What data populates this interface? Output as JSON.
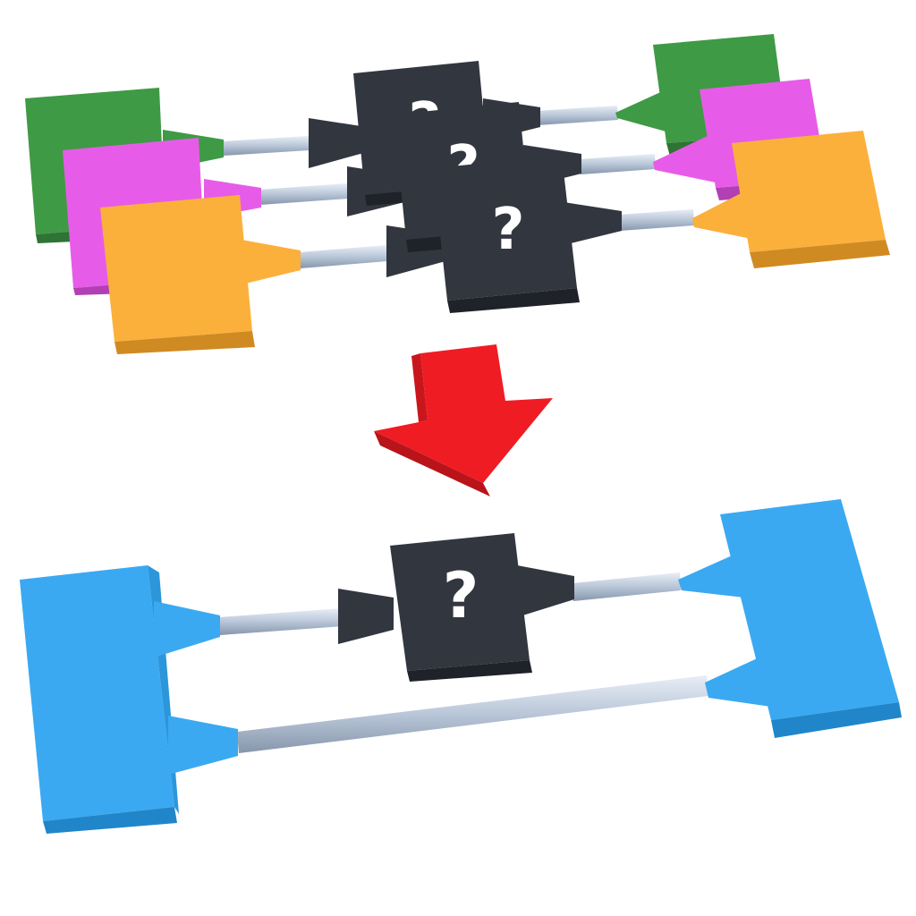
{
  "figure": {
    "top_group": {
      "rows": [
        {
          "color_name": "green",
          "color": "#3f9a45",
          "color_dark": "#2e7434",
          "unknown_label": "?"
        },
        {
          "color_name": "magenta",
          "color": "#e65ce8",
          "color_dark": "#b23fb4",
          "unknown_label": "?"
        },
        {
          "color_name": "orange",
          "color": "#fbb03c",
          "color_dark": "#d08a22",
          "unknown_label": "?"
        }
      ]
    },
    "transition_arrow": {
      "icon": "down-arrow-icon",
      "color": "#ef1c24",
      "color_dark": "#b8141a"
    },
    "bottom_group": {
      "color": "#3aa9f2",
      "color_dark": "#2186c9",
      "unknown_label": "?"
    },
    "unknown_box_color": "#32363f",
    "rod_color": "#b9c6d8"
  }
}
